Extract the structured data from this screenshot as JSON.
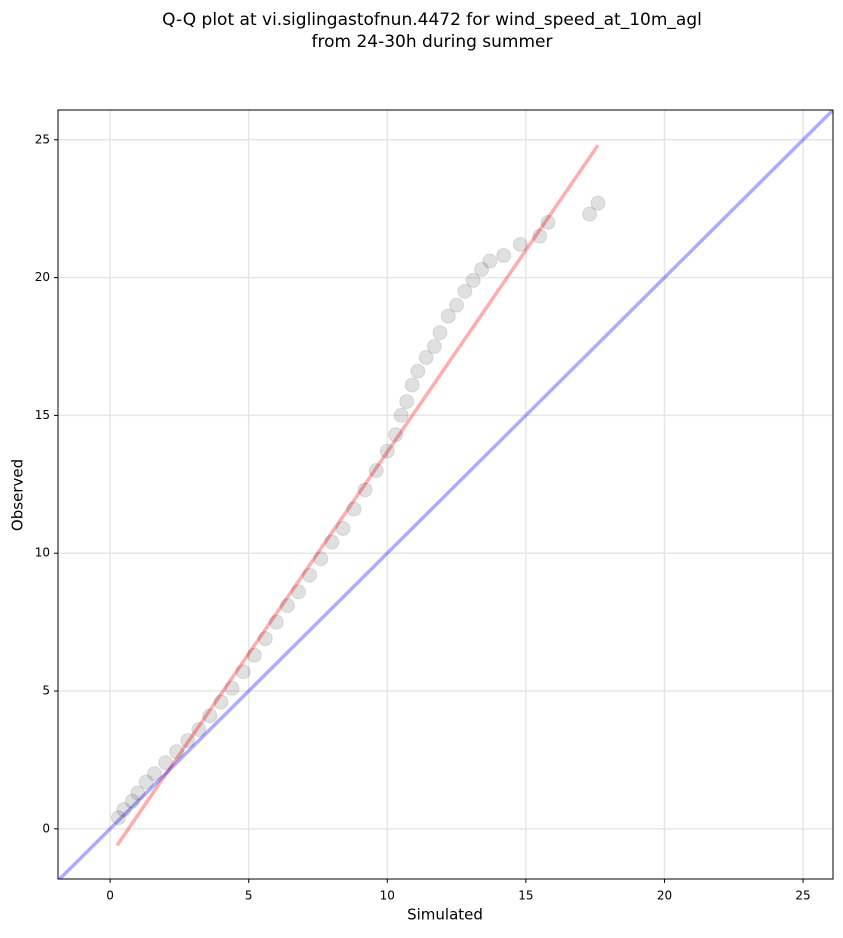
{
  "chart_data": {
    "type": "scatter",
    "title": [
      "Q-Q plot at vi.siglingastofnun.4472 for wind_speed_at_10m_agl",
      "from 24-30h during summer"
    ],
    "xlabel": "Simulated",
    "ylabel": "Observed",
    "xlim": [
      -1.88,
      26.08
    ],
    "ylim": [
      -1.82,
      26.08
    ],
    "xticks": [
      0,
      5,
      10,
      15,
      20,
      25
    ],
    "yticks": [
      0,
      5,
      10,
      15,
      20,
      25
    ],
    "grid": true,
    "series": [
      {
        "color": "#000000",
        "x": [
          0.3,
          0.5,
          0.8,
          1.0,
          1.3,
          1.6,
          2.0,
          2.4,
          2.8,
          3.2,
          3.6,
          4.0,
          4.4,
          4.8,
          5.2,
          5.6,
          6.0,
          6.4,
          6.8,
          7.2,
          7.6,
          8.0,
          8.4,
          8.8,
          9.2,
          9.6,
          10.0,
          10.3,
          10.5,
          10.7,
          10.9,
          11.1,
          11.4,
          11.7,
          11.9,
          12.2,
          12.5,
          12.8,
          13.1,
          13.4,
          13.7,
          14.2,
          14.8,
          15.5,
          15.8,
          17.3,
          17.6
        ],
        "y": [
          0.4,
          0.7,
          1.0,
          1.3,
          1.7,
          2.0,
          2.4,
          2.8,
          3.2,
          3.6,
          4.1,
          4.6,
          5.1,
          5.7,
          6.3,
          6.9,
          7.5,
          8.1,
          8.6,
          9.2,
          9.8,
          10.4,
          10.9,
          11.6,
          12.3,
          13.0,
          13.7,
          14.3,
          15.0,
          15.5,
          16.1,
          16.6,
          17.1,
          17.5,
          18.0,
          18.6,
          19.0,
          19.5,
          19.9,
          20.3,
          20.6,
          20.8,
          21.2,
          21.5,
          22.0,
          22.3,
          22.7
        ]
      }
    ],
    "lines": [
      {
        "color": "#ff0000",
        "x": [
          0.25,
          17.6
        ],
        "y": [
          -0.6,
          24.8
        ]
      },
      {
        "color": "#0000ff",
        "x": [
          -1.88,
          26.08
        ],
        "y": [
          -1.88,
          26.08
        ]
      }
    ]
  }
}
